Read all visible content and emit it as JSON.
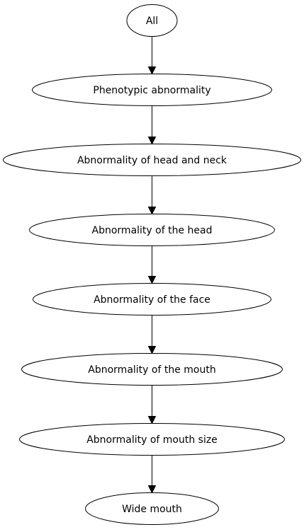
{
  "diagram": {
    "nodes": [
      {
        "id": "all",
        "label": "All"
      },
      {
        "id": "phenotypic-abnormality",
        "label": "Phenotypic abnormality"
      },
      {
        "id": "abnormality-of-head-and-neck",
        "label": "Abnormality of head and neck"
      },
      {
        "id": "abnormality-of-the-head",
        "label": "Abnormality of the head"
      },
      {
        "id": "abnormality-of-the-face",
        "label": "Abnormality of the face"
      },
      {
        "id": "abnormality-of-the-mouth",
        "label": "Abnormality of the mouth"
      },
      {
        "id": "abnormality-of-mouth-size",
        "label": "Abnormality of mouth size"
      },
      {
        "id": "wide-mouth",
        "label": "Wide mouth"
      }
    ],
    "edges": [
      {
        "from": "all",
        "to": "phenotypic-abnormality"
      },
      {
        "from": "phenotypic-abnormality",
        "to": "abnormality-of-head-and-neck"
      },
      {
        "from": "abnormality-of-head-and-neck",
        "to": "abnormality-of-the-head"
      },
      {
        "from": "abnormality-of-the-head",
        "to": "abnormality-of-the-face"
      },
      {
        "from": "abnormality-of-the-face",
        "to": "abnormality-of-the-mouth"
      },
      {
        "from": "abnormality-of-the-mouth",
        "to": "abnormality-of-mouth-size"
      },
      {
        "from": "abnormality-of-mouth-size",
        "to": "wide-mouth"
      }
    ]
  }
}
